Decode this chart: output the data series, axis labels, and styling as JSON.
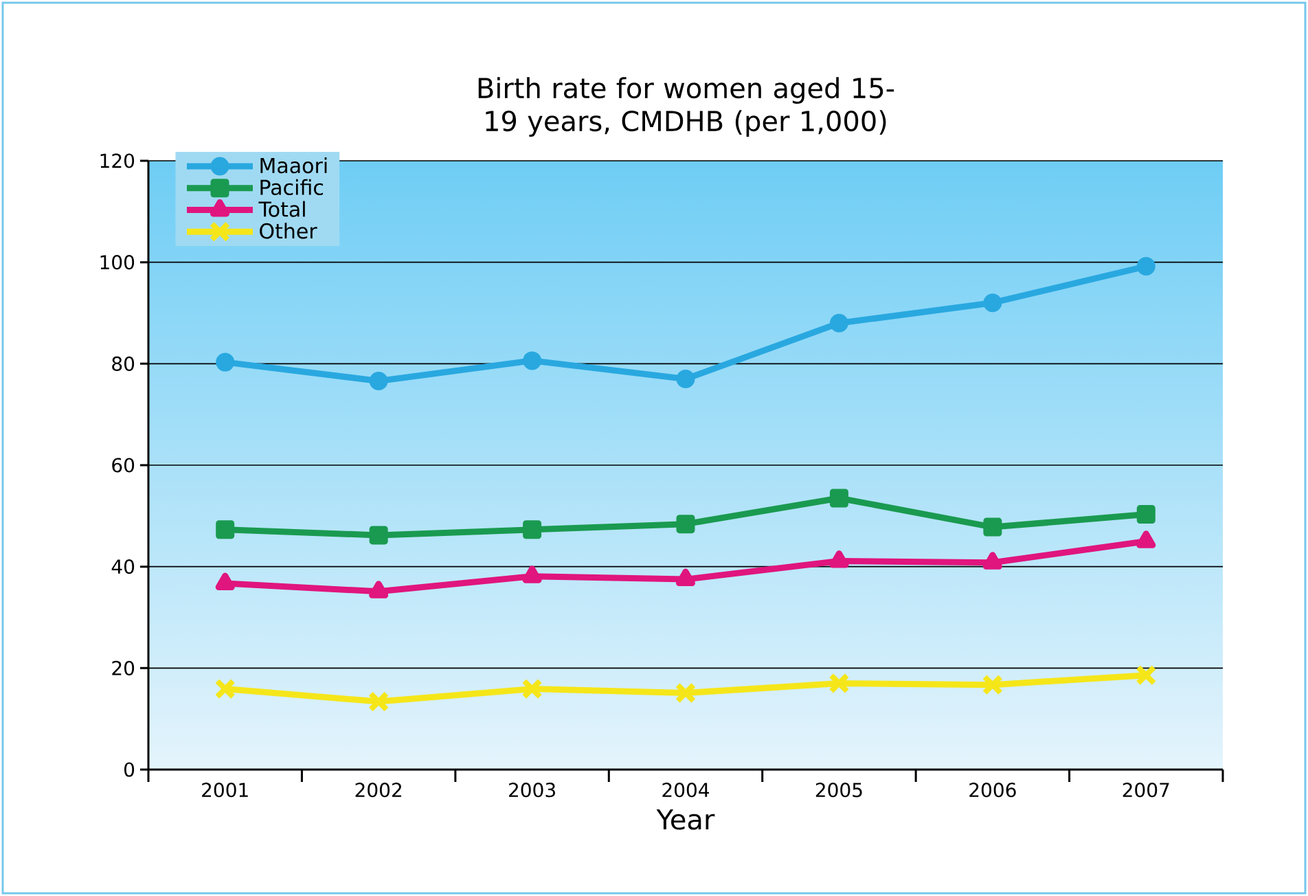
{
  "chart_data": {
    "type": "line",
    "title": "Birth rate for women aged 15-19 years, CMDHB (per 1,000)",
    "xlabel": "Year",
    "categories": [
      "2001",
      "2002",
      "2003",
      "2004",
      "2005",
      "2006",
      "2007"
    ],
    "series": [
      {
        "name": "Maaori",
        "color": "#29a8e0",
        "marker": "circle",
        "values": [
          80.3,
          76.6,
          80.6,
          77,
          88,
          92,
          99.2
        ]
      },
      {
        "name": "Pacific",
        "color": "#1a9a50",
        "marker": "square",
        "values": [
          47.3,
          46.2,
          47.3,
          48.4,
          53.5,
          47.8,
          50.3
        ]
      },
      {
        "name": "Total",
        "color": "#e0157e",
        "marker": "triangle",
        "values": [
          36.7,
          35.1,
          38.1,
          37.5,
          41.1,
          40.8,
          45
        ]
      },
      {
        "name": "Other",
        "color": "#f5e61a",
        "marker": "cross",
        "values": [
          15.9,
          13.4,
          15.9,
          15.1,
          17,
          16.7,
          18.6
        ]
      }
    ],
    "ylim": [
      0,
      120
    ],
    "yticks": [
      0,
      20,
      40,
      60,
      80,
      100,
      120
    ],
    "grid": "y",
    "legend": "top left",
    "line_style": "solid"
  }
}
